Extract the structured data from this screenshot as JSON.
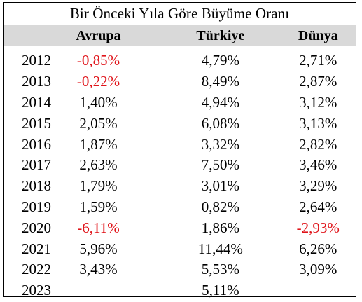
{
  "title": "Bir Önceki Yıla Göre Büyüme Oranı",
  "columns": [
    "Avrupa",
    "Türkiye",
    "Dünya"
  ],
  "negative_color": "#e0141a",
  "header_bg": "#d9d9d9",
  "rows": [
    {
      "year": "2012",
      "avrupa": "-0,85%",
      "turkiye": "4,79%",
      "dunya": "2,71%"
    },
    {
      "year": "2013",
      "avrupa": "-0,22%",
      "turkiye": "8,49%",
      "dunya": "2,87%"
    },
    {
      "year": "2014",
      "avrupa": "1,40%",
      "turkiye": "4,94%",
      "dunya": "3,12%"
    },
    {
      "year": "2015",
      "avrupa": "2,05%",
      "turkiye": "6,08%",
      "dunya": "3,13%"
    },
    {
      "year": "2016",
      "avrupa": "1,87%",
      "turkiye": "3,32%",
      "dunya": "2,82%"
    },
    {
      "year": "2017",
      "avrupa": "2,63%",
      "turkiye": "7,50%",
      "dunya": "3,46%"
    },
    {
      "year": "2018",
      "avrupa": "1,79%",
      "turkiye": "3,01%",
      "dunya": "3,29%"
    },
    {
      "year": "2019",
      "avrupa": "1,59%",
      "turkiye": "0,82%",
      "dunya": "2,64%"
    },
    {
      "year": "2020",
      "avrupa": "-6,11%",
      "turkiye": "1,86%",
      "dunya": "-2,93%"
    },
    {
      "year": "2021",
      "avrupa": "5,96%",
      "turkiye": "11,44%",
      "dunya": "6,26%"
    },
    {
      "year": "2022",
      "avrupa": "3,43%",
      "turkiye": "5,53%",
      "dunya": "3,09%"
    },
    {
      "year": "2023",
      "avrupa": "",
      "turkiye": "5,11%",
      "dunya": ""
    }
  ]
}
